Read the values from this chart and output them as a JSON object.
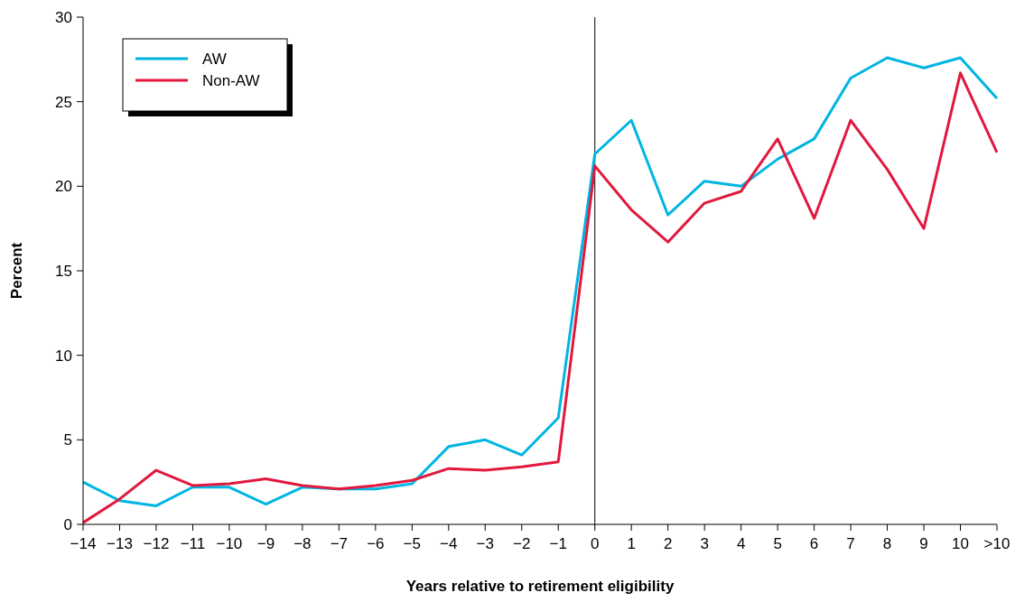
{
  "chart_data": {
    "type": "line",
    "xlabel": "Years relative to retirement eligibility",
    "ylabel": "Percent",
    "x": [
      -14,
      -13,
      -12,
      -11,
      -10,
      -9,
      -8,
      -7,
      -6,
      -5,
      -4,
      -3,
      -2,
      -1,
      0,
      1,
      2,
      3,
      4,
      5,
      6,
      7,
      8,
      9,
      10,
      11
    ],
    "xlim": [
      -14,
      11
    ],
    "xticks": [
      {
        "value": -14,
        "label": "−14"
      },
      {
        "value": -13,
        "label": "−13"
      },
      {
        "value": -12,
        "label": "−12"
      },
      {
        "value": -11,
        "label": "−11"
      },
      {
        "value": -10,
        "label": "−10"
      },
      {
        "value": -9,
        "label": "−9"
      },
      {
        "value": -8,
        "label": "−8"
      },
      {
        "value": -7,
        "label": "−7"
      },
      {
        "value": -6,
        "label": "−6"
      },
      {
        "value": -5,
        "label": "−5"
      },
      {
        "value": -4,
        "label": "−4"
      },
      {
        "value": -3,
        "label": "−3"
      },
      {
        "value": -2,
        "label": "−2"
      },
      {
        "value": -1,
        "label": "−1"
      },
      0,
      1,
      2,
      3,
      4,
      5,
      6,
      7,
      8,
      9,
      10,
      {
        "value": 11,
        "label": ">10"
      }
    ],
    "ylim": [
      0,
      30
    ],
    "yticks": [
      0,
      5,
      10,
      15,
      20,
      25,
      30
    ],
    "series": [
      {
        "name": "AW",
        "color": "#00b5e2",
        "values": [
          2.5,
          1.4,
          1.1,
          2.2,
          2.2,
          1.2,
          2.2,
          2.1,
          2.1,
          2.4,
          4.6,
          5.0,
          4.1,
          6.3,
          21.9,
          23.9,
          18.3,
          20.3,
          20.0,
          21.6,
          22.8,
          26.4,
          27.6,
          27.0,
          27.6,
          25.2
        ]
      },
      {
        "name": "Non-AW",
        "color": "#e2183d",
        "values": [
          0.1,
          1.5,
          3.2,
          2.3,
          2.4,
          2.7,
          2.3,
          2.1,
          2.3,
          2.6,
          3.3,
          3.2,
          3.4,
          3.7,
          21.2,
          18.6,
          16.7,
          19.0,
          19.7,
          22.8,
          18.1,
          23.9,
          21.0,
          17.5,
          26.7,
          22.0
        ]
      }
    ],
    "ref_lines": [
      {
        "axis": "x",
        "value": 0,
        "color": "#000000"
      }
    ],
    "legend": "top left",
    "grid": false,
    "line_style": "solid"
  }
}
